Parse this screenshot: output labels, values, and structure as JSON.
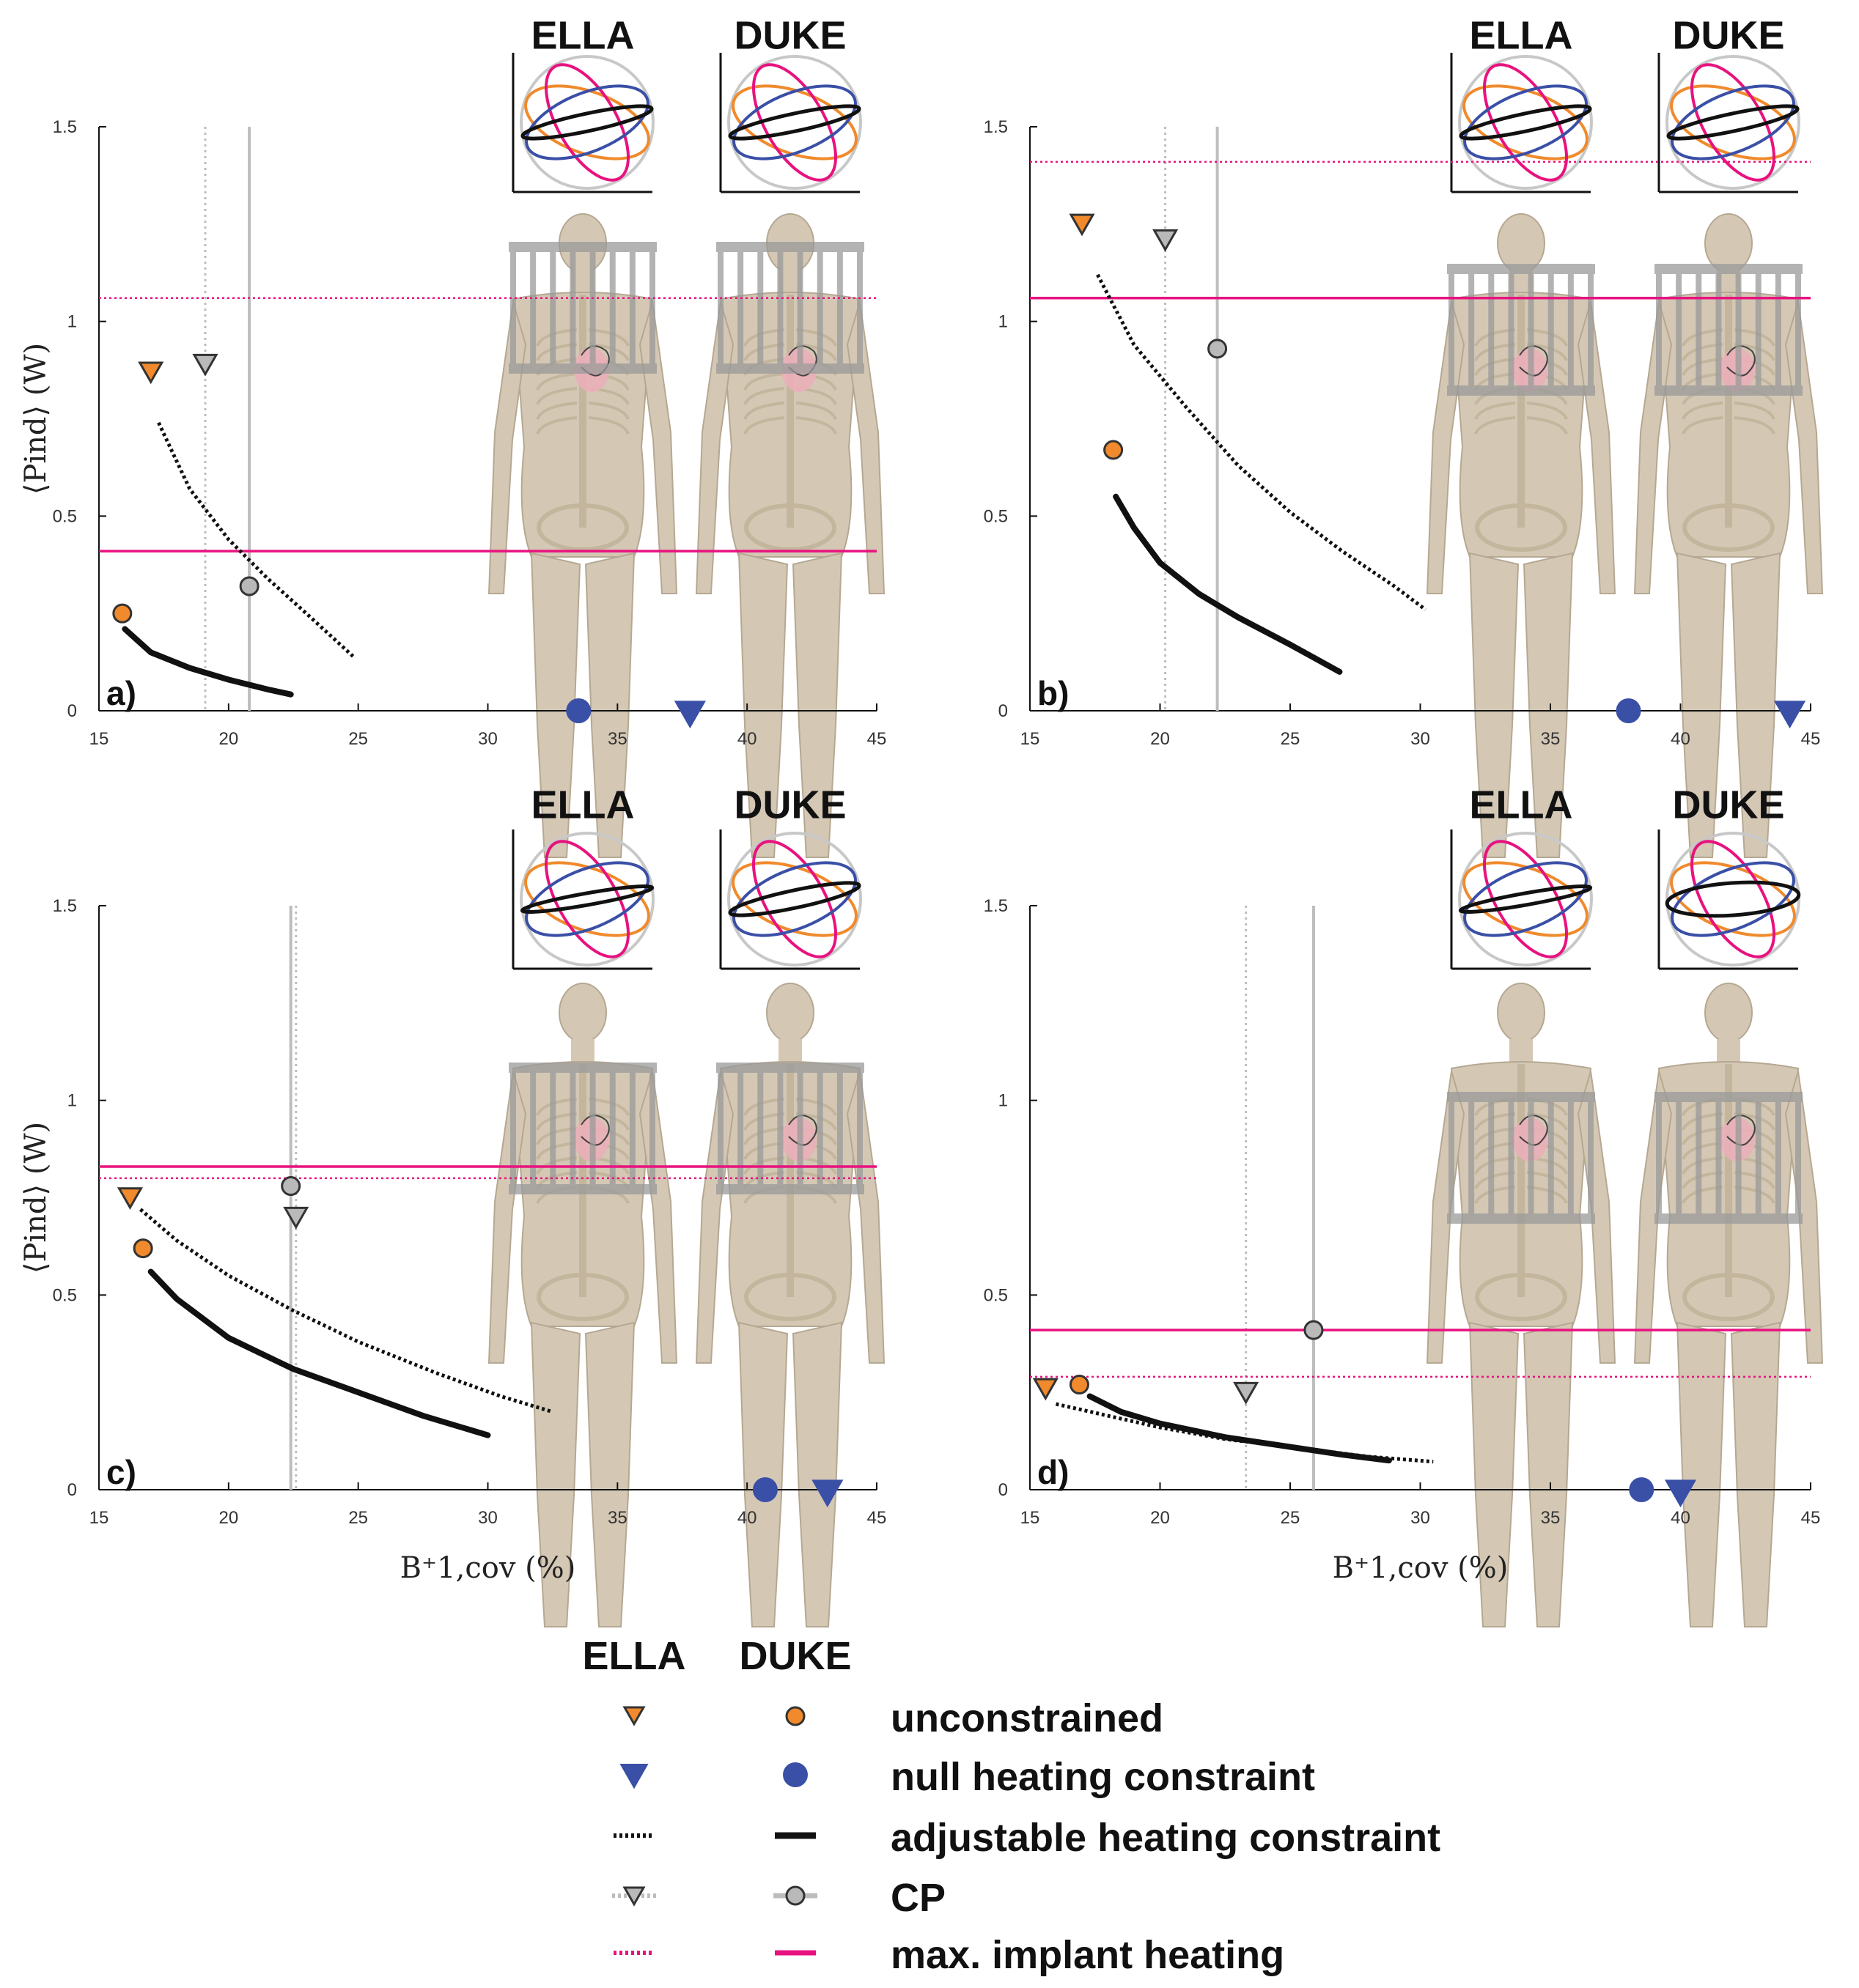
{
  "models": [
    "ELLA",
    "DUKE"
  ],
  "colors": {
    "unconstrained": "#f08a2c",
    "null_constraint": "#3a4fa6",
    "adjustable": "#111111",
    "cp": "#b9b9b9",
    "cp_line": "#bdbdbd",
    "implant": "#e8127f",
    "ellipse_orange": "#f08a2c",
    "ellipse_magenta": "#e8127f",
    "ellipse_blue": "#3a4fa6",
    "ellipse_black": "#111111"
  },
  "axes": {
    "xlabel": "B⁺1,cov (%)",
    "ylabel": "⟨Pind⟩ (W)",
    "xlim": [
      15,
      45
    ],
    "ylim": [
      0,
      1.5
    ],
    "x_ticks": [
      15,
      20,
      25,
      30,
      35,
      40,
      45
    ],
    "y_ticks": [
      0,
      0.5,
      1,
      1.5
    ],
    "y_tick_labels": [
      "0",
      "0.5",
      "1",
      "1.5"
    ]
  },
  "chart_data": [
    {
      "type": "scatter",
      "panel": "a)",
      "ella": {
        "unconstrained": [
          17.0,
          0.87
        ],
        "null_constraint": [
          37.8,
          0.0
        ],
        "cp": [
          19.1,
          0.89
        ],
        "adjustable_curve": [
          [
            17.3,
            0.74
          ],
          [
            18.5,
            0.57
          ],
          [
            20.0,
            0.44
          ],
          [
            21.5,
            0.34
          ],
          [
            23.0,
            0.25
          ],
          [
            24.8,
            0.14
          ]
        ],
        "cp_line_x": 19.1,
        "implant_max": 1.06
      },
      "duke": {
        "unconstrained": [
          15.9,
          0.25
        ],
        "null_constraint": [
          33.5,
          0.0
        ],
        "cp": [
          20.8,
          0.32
        ],
        "adjustable_curve": [
          [
            16.0,
            0.21
          ],
          [
            17.0,
            0.15
          ],
          [
            18.5,
            0.11
          ],
          [
            20.0,
            0.08
          ],
          [
            21.5,
            0.055
          ],
          [
            22.4,
            0.042
          ]
        ],
        "cp_line_x": 20.8,
        "implant_max": 0.41
      }
    },
    {
      "type": "scatter",
      "panel": "b)",
      "ella": {
        "unconstrained": [
          17.0,
          1.25
        ],
        "null_constraint": [
          44.2,
          0.0
        ],
        "cp": [
          20.2,
          1.21
        ],
        "adjustable_curve": [
          [
            17.6,
            1.12
          ],
          [
            19.0,
            0.94
          ],
          [
            21.0,
            0.78
          ],
          [
            23.0,
            0.63
          ],
          [
            25.0,
            0.51
          ],
          [
            27.0,
            0.41
          ],
          [
            29.0,
            0.32
          ],
          [
            30.2,
            0.26
          ]
        ],
        "cp_line_x": 20.2,
        "implant_max": 1.41
      },
      "duke": {
        "unconstrained": [
          18.2,
          0.67
        ],
        "null_constraint": [
          38.0,
          0.0
        ],
        "cp": [
          22.2,
          0.93
        ],
        "adjustable_curve": [
          [
            18.3,
            0.55
          ],
          [
            19.0,
            0.47
          ],
          [
            20.0,
            0.38
          ],
          [
            21.5,
            0.3
          ],
          [
            23.0,
            0.24
          ],
          [
            25.0,
            0.17
          ],
          [
            26.9,
            0.1
          ]
        ],
        "cp_line_x": 22.2,
        "implant_max": 1.06
      }
    },
    {
      "type": "scatter",
      "panel": "c)",
      "ella": {
        "unconstrained": [
          16.2,
          0.75
        ],
        "null_constraint": [
          43.1,
          0.0
        ],
        "cp": [
          22.6,
          0.7
        ],
        "adjustable_curve": [
          [
            16.6,
            0.72
          ],
          [
            18.0,
            0.64
          ],
          [
            20.0,
            0.55
          ],
          [
            22.5,
            0.46
          ],
          [
            25.0,
            0.38
          ],
          [
            28.0,
            0.3
          ],
          [
            30.5,
            0.24
          ],
          [
            32.5,
            0.2
          ]
        ],
        "cp_line_x": 22.6,
        "implant_max": 0.8
      },
      "duke": {
        "unconstrained": [
          16.7,
          0.62
        ],
        "null_constraint": [
          40.7,
          0.0
        ],
        "cp": [
          22.4,
          0.78
        ],
        "adjustable_curve": [
          [
            17.0,
            0.56
          ],
          [
            18.0,
            0.49
          ],
          [
            20.0,
            0.39
          ],
          [
            22.5,
            0.31
          ],
          [
            25.0,
            0.25
          ],
          [
            27.5,
            0.19
          ],
          [
            30.0,
            0.14
          ]
        ],
        "cp_line_x": 22.4,
        "implant_max": 0.83
      }
    },
    {
      "type": "scatter",
      "panel": "d)",
      "ella": {
        "unconstrained": [
          15.6,
          0.26
        ],
        "null_constraint": [
          40.0,
          0.0
        ],
        "cp": [
          23.3,
          0.25
        ],
        "adjustable_curve": [
          [
            16.0,
            0.22
          ],
          [
            18.0,
            0.19
          ],
          [
            20.0,
            0.16
          ],
          [
            22.5,
            0.13
          ],
          [
            25.0,
            0.11
          ],
          [
            28.0,
            0.085
          ],
          [
            30.5,
            0.072
          ]
        ],
        "cp_line_x": 23.3,
        "implant_max": 0.29
      },
      "duke": {
        "unconstrained": [
          16.9,
          0.27
        ],
        "null_constraint": [
          38.5,
          0.0
        ],
        "cp": [
          25.9,
          0.41
        ],
        "adjustable_curve": [
          [
            17.3,
            0.24
          ],
          [
            18.5,
            0.2
          ],
          [
            20.0,
            0.17
          ],
          [
            22.5,
            0.135
          ],
          [
            25.0,
            0.11
          ],
          [
            27.0,
            0.09
          ],
          [
            28.8,
            0.075
          ]
        ],
        "cp_line_x": 25.9,
        "implant_max": 0.41
      }
    }
  ],
  "legend": {
    "headers": [
      "ELLA",
      "DUKE"
    ],
    "rows": [
      {
        "key": "unconstrained",
        "label": "unconstrained"
      },
      {
        "key": "null",
        "label": "null heating constraint"
      },
      {
        "key": "adjustable",
        "label": "adjustable heating constraint"
      },
      {
        "key": "cp",
        "label": "CP"
      },
      {
        "key": "implant",
        "label": "max. implant heating"
      }
    ]
  }
}
